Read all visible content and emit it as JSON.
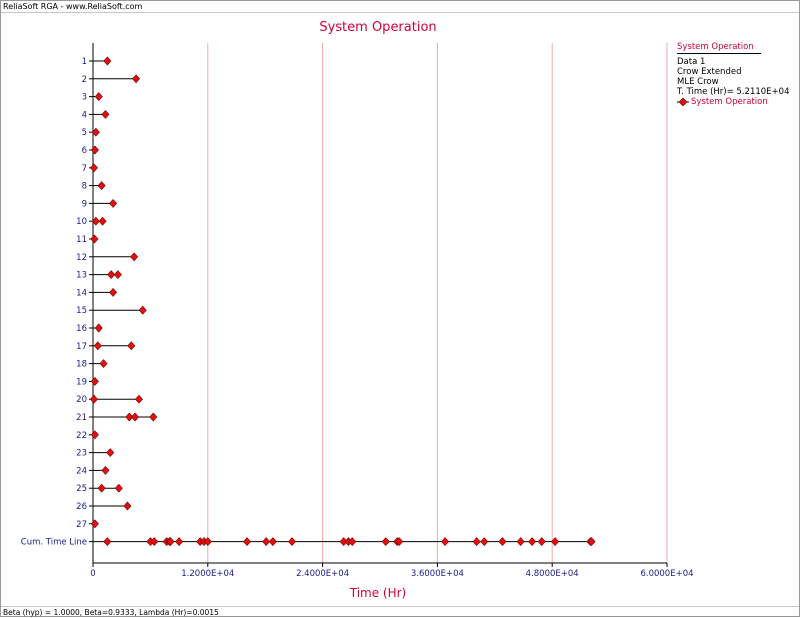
{
  "app": {
    "title": "ReliaSoft RGA - www.ReliaSoft.com"
  },
  "status_text": "Beta (hyp) = 1.0000, Beta=0.9333, Lambda (Hr)=0.0015",
  "legend": {
    "header": "System Operation",
    "lines": [
      "Data 1",
      "Crow Extended",
      "MLE Crow",
      "T. Time (Hr)= 5.2110E+04"
    ],
    "series_label": "System Operation"
  },
  "colors": {
    "marker": "#e01010",
    "title": "#d3003a",
    "axis_label": "#d3003a",
    "tick_text": "#1a1a8c",
    "grid": "#f2a8a8"
  },
  "chart_data": {
    "type": "scatter",
    "title": "System Operation",
    "xlabel": "Time (Hr)",
    "ylabel": "",
    "xlim": [
      0,
      60000
    ],
    "x_ticks": [
      0,
      12000,
      24000,
      36000,
      48000,
      60000
    ],
    "x_tick_labels": [
      "0",
      "1.2000E+04",
      "2.4000E+04",
      "3.6000E+04",
      "4.8000E+04",
      "6.0000E+04"
    ],
    "grid": "vertical",
    "categories": [
      "1",
      "2",
      "3",
      "4",
      "5",
      "6",
      "7",
      "8",
      "9",
      "10",
      "11",
      "12",
      "13",
      "14",
      "15",
      "16",
      "17",
      "18",
      "19",
      "20",
      "21",
      "22",
      "23",
      "24",
      "25",
      "26",
      "27",
      "Cum. Time Line"
    ],
    "systems": [
      {
        "label": "1",
        "end": 1500,
        "failures": [
          1500
        ]
      },
      {
        "label": "2",
        "end": 4500,
        "failures": [
          4500
        ]
      },
      {
        "label": "3",
        "end": 600,
        "failures": [
          600
        ]
      },
      {
        "label": "4",
        "end": 1300,
        "failures": [
          1300
        ]
      },
      {
        "label": "5",
        "end": 300,
        "failures": [
          300
        ]
      },
      {
        "label": "6",
        "end": 200,
        "failures": [
          200
        ]
      },
      {
        "label": "7",
        "end": 100,
        "failures": [
          100
        ]
      },
      {
        "label": "8",
        "end": 900,
        "failures": [
          900
        ]
      },
      {
        "label": "9",
        "end": 2100,
        "failures": [
          2100
        ]
      },
      {
        "label": "10",
        "end": 1000,
        "failures": [
          300,
          1000
        ]
      },
      {
        "label": "11",
        "end": 150,
        "failures": [
          150
        ]
      },
      {
        "label": "12",
        "end": 4300,
        "failures": [
          4300
        ]
      },
      {
        "label": "13",
        "end": 2600,
        "failures": [
          1900,
          2600
        ]
      },
      {
        "label": "14",
        "end": 2100,
        "failures": [
          2100
        ]
      },
      {
        "label": "15",
        "end": 5200,
        "failures": [
          5200
        ]
      },
      {
        "label": "16",
        "end": 600,
        "failures": [
          600
        ]
      },
      {
        "label": "17",
        "end": 4000,
        "failures": [
          500,
          4000
        ]
      },
      {
        "label": "18",
        "end": 1100,
        "failures": [
          1100
        ]
      },
      {
        "label": "19",
        "end": 200,
        "failures": [
          200
        ]
      },
      {
        "label": "20",
        "end": 4800,
        "failures": [
          100,
          4800
        ]
      },
      {
        "label": "21",
        "end": 6300,
        "failures": [
          3800,
          4400,
          6300
        ]
      },
      {
        "label": "22",
        "end": 200,
        "failures": [
          200
        ]
      },
      {
        "label": "23",
        "end": 1800,
        "failures": [
          1800
        ]
      },
      {
        "label": "24",
        "end": 1300,
        "failures": [
          1300
        ]
      },
      {
        "label": "25",
        "end": 2700,
        "failures": [
          900,
          2700
        ]
      },
      {
        "label": "26",
        "end": 3600,
        "failures": [
          3600
        ]
      },
      {
        "label": "27",
        "end": 200,
        "failures": [
          200
        ]
      }
    ],
    "cumulative_time_line": {
      "label": "Cum. Time Line",
      "end": 52110,
      "failures": [
        1500,
        6000,
        6400,
        7700,
        8000,
        8100,
        9000,
        11200,
        11600,
        12000,
        16100,
        18100,
        18800,
        20800,
        26200,
        26700,
        27100,
        30600,
        31800,
        32000,
        36800,
        40100,
        40900,
        42800,
        44700,
        45900,
        46900,
        48300,
        52000,
        52110
      ]
    }
  }
}
